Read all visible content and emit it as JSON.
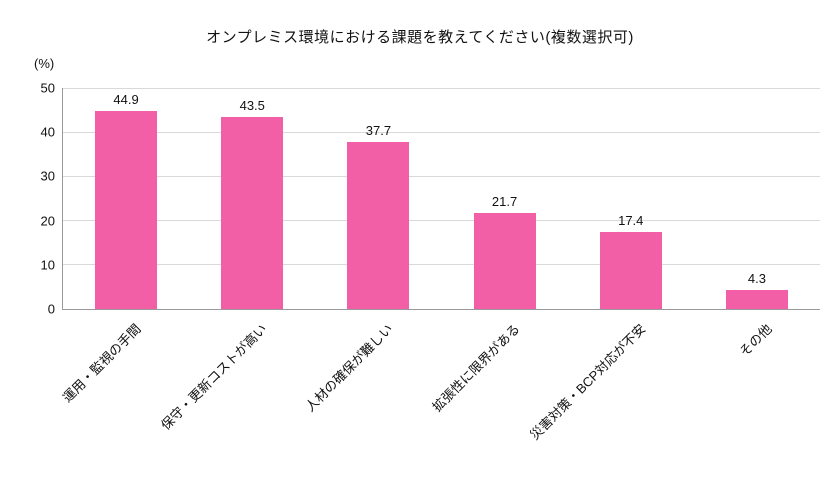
{
  "chart_data": {
    "type": "bar",
    "title": "オンプレミス環境における課題を教えてください(複数選択可)",
    "unit_label": "(%)",
    "categories": [
      "運用・監視の手間",
      "保守・更新コストが高い",
      "人材の確保が難しい",
      "拡張性に限界がある",
      "災害対策・BCP対応が不安",
      "その他"
    ],
    "values": [
      44.9,
      43.5,
      37.7,
      21.7,
      17.4,
      4.3
    ],
    "value_labels": [
      "44.9",
      "43.5",
      "37.7",
      "21.7",
      "17.4",
      "4.3"
    ],
    "xlabel": "",
    "ylabel": "(%)",
    "ylim": [
      0,
      50
    ],
    "yticks": [
      0,
      10,
      20,
      30,
      40,
      50
    ],
    "bar_color": "#f35fa6",
    "gridline_color": "#d9d9d9",
    "axis_color": "#9a9a9a",
    "grid": true,
    "legend_position": "none"
  }
}
